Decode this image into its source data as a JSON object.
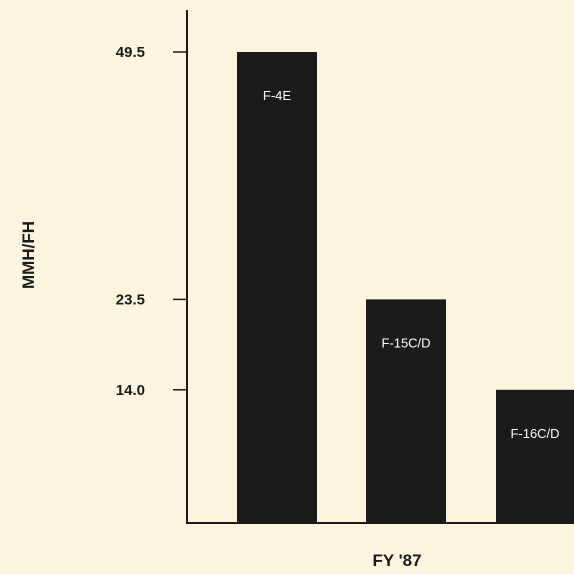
{
  "chart_data": {
    "type": "bar",
    "categories": [
      "F-4E",
      "F-15C/D",
      "F-16C/D"
    ],
    "values": [
      49.5,
      23.5,
      14.0
    ],
    "ytick_labels": [
      "49.5",
      "23.5",
      "14.0"
    ],
    "xlabel": "FY '87",
    "ylabel": "MMH/FH",
    "grid": false,
    "bar_color": "#1b1b1b",
    "label_color": "#ffffff",
    "background_color": "#fbf5df"
  }
}
